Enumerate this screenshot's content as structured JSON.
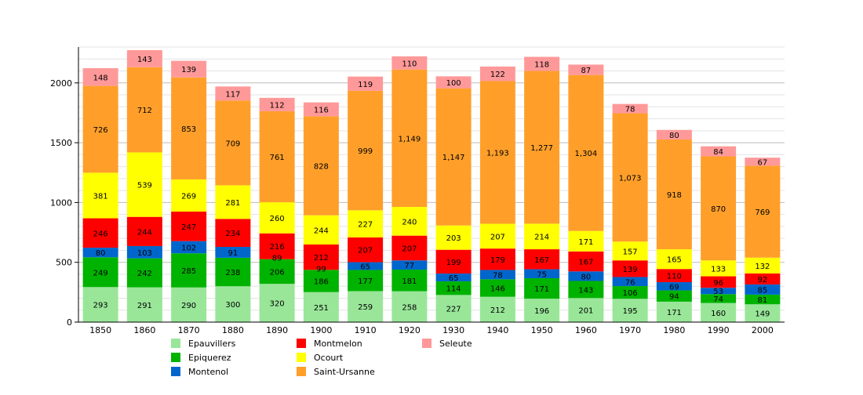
{
  "chart_data": {
    "type": "bar",
    "stacked": true,
    "title": "",
    "xlabel": "",
    "ylabel": "",
    "ylim": [
      0,
      2300
    ],
    "yticks": [
      0,
      500,
      1000,
      1500,
      2000
    ],
    "grid": true,
    "legend_position": "bottom",
    "categories": [
      "1850",
      "1860",
      "1870",
      "1880",
      "1890",
      "1900",
      "1910",
      "1920",
      "1930",
      "1940",
      "1950",
      "1960",
      "1970",
      "1980",
      "1990",
      "2000"
    ],
    "series": [
      {
        "name": "Epauvillers",
        "color": "#99e699",
        "values": [
          293,
          291,
          290,
          300,
          320,
          251,
          259,
          258,
          227,
          212,
          196,
          201,
          195,
          171,
          160,
          149
        ],
        "labels": [
          "293",
          "291",
          "290",
          "300",
          "320",
          "251",
          "259",
          "258",
          "227",
          "212",
          "196",
          "201",
          "195",
          "171",
          "160",
          "149"
        ]
      },
      {
        "name": "Epiquerez",
        "color": "#00b300",
        "values": [
          249,
          242,
          285,
          238,
          206,
          186,
          177,
          181,
          114,
          146,
          171,
          143,
          106,
          94,
          74,
          81
        ],
        "labels": [
          "249",
          "242",
          "285",
          "238",
          "206",
          "186",
          "177",
          "181",
          "114",
          "146",
          "171",
          "143",
          "106",
          "94",
          "74",
          "81"
        ]
      },
      {
        "name": "Montenol",
        "color": "#0066cc",
        "values": [
          80,
          103,
          102,
          91,
          0,
          0,
          65,
          77,
          65,
          78,
          75,
          80,
          76,
          69,
          53,
          85
        ],
        "labels": [
          "80",
          "103",
          "102",
          "91",
          "",
          "",
          "65",
          "77",
          "65",
          "78",
          "75",
          "80",
          "76",
          "69",
          "53",
          "85"
        ]
      },
      {
        "name": "Montmelon",
        "color": "#ff0000",
        "values": [
          246,
          244,
          247,
          234,
          216,
          212,
          207,
          207,
          199,
          179,
          167,
          167,
          139,
          110,
          96,
          92
        ],
        "labels": [
          "246",
          "244",
          "247",
          "234",
          "216",
          "212",
          "207",
          "207",
          "199",
          "179",
          "167",
          "167",
          "139",
          "110",
          "96",
          "92"
        ]
      },
      {
        "name": "Ocourt",
        "color": "#ffff00",
        "values": [
          381,
          539,
          269,
          281,
          260,
          244,
          227,
          240,
          203,
          207,
          214,
          171,
          157,
          165,
          133,
          132
        ],
        "labels": [
          "381",
          "539",
          "269",
          "281",
          "260",
          "244",
          "227",
          "240",
          "203",
          "207",
          "214",
          "171",
          "157",
          "165",
          "133",
          "132"
        ]
      },
      {
        "name": "Saint-Ursanne",
        "color": "#ff9f2a",
        "values": [
          726,
          712,
          853,
          709,
          761,
          828,
          999,
          1149,
          1147,
          1193,
          1277,
          1304,
          1073,
          918,
          870,
          769
        ],
        "labels": [
          "726",
          "712",
          "853",
          "709",
          "761",
          "828",
          "999",
          "1,149",
          "1,147",
          "1,193",
          "1,277",
          "1,304",
          "1,073",
          "918",
          "870",
          "769"
        ]
      },
      {
        "name": "Seleute",
        "color": "#ff9999",
        "values": [
          148,
          143,
          139,
          117,
          112,
          116,
          119,
          110,
          100,
          122,
          118,
          87,
          78,
          80,
          84,
          67
        ],
        "labels": [
          "148",
          "143",
          "139",
          "117",
          "112",
          "116",
          "119",
          "110",
          "100",
          "122",
          "118",
          "87",
          "78",
          "80",
          "84",
          "67"
        ]
      }
    ],
    "extra_labels": [
      {
        "category": "1890",
        "text": "89"
      },
      {
        "category": "1900",
        "text": "99"
      }
    ]
  }
}
